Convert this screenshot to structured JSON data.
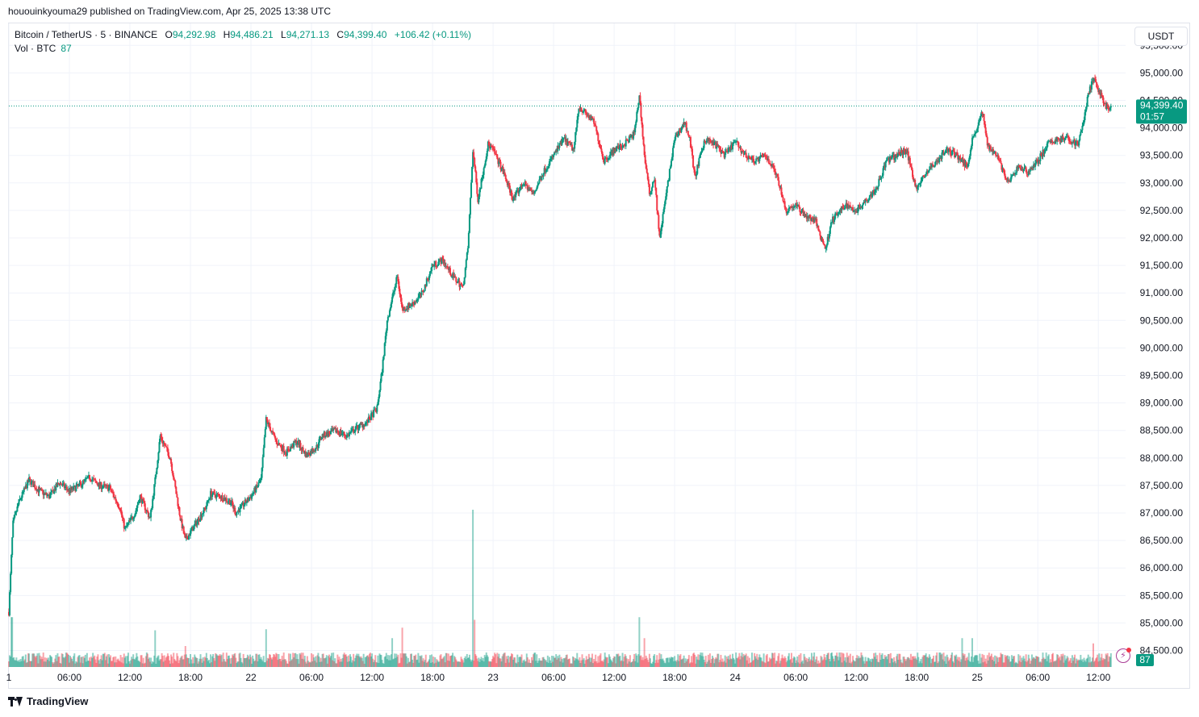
{
  "header": {
    "published": "hououinkyouma29 published on TradingView.com, Apr 25, 2025 13:38 UTC"
  },
  "legend": {
    "symbol": "Bitcoin / TetherUS · 5 · BINANCE",
    "open_label": "O",
    "open": "94,292.98",
    "high_label": "H",
    "high": "94,486.21",
    "low_label": "L",
    "low": "94,271.13",
    "close_label": "C",
    "close": "94,399.40",
    "change": "+106.42 (+0.11%)",
    "volume_label": "Vol · BTC",
    "volume": "87"
  },
  "price_scale": {
    "currency": "USDT",
    "last_price": "94,399.40",
    "countdown": "01:57",
    "volume_badge": "87"
  },
  "colors": {
    "up": "#089981",
    "down": "#f23645",
    "grid": "#f0f3fa",
    "last_price_line": "#089981",
    "text": "#131722"
  },
  "icons": {
    "alert": "lightning-alert-icon",
    "brand": "tradingview-logo-icon"
  },
  "brand": {
    "name": "TradingView"
  },
  "chart_data": {
    "type": "candlestick",
    "timeframe": "5",
    "y_axis": {
      "ticks": [
        84500,
        85000,
        85500,
        86000,
        86500,
        87000,
        87500,
        88000,
        88500,
        89000,
        89500,
        90000,
        90500,
        91000,
        91500,
        92000,
        92500,
        93000,
        93500,
        94000,
        94500,
        95000,
        95500
      ],
      "tick_labels": [
        "84,500.00",
        "85,000.00",
        "85,500.00",
        "86,000.00",
        "86,500.00",
        "87,000.00",
        "87,500.00",
        "88,000.00",
        "88,500.00",
        "89,000.00",
        "89,500.00",
        "90,000.00",
        "90,500.00",
        "91,000.00",
        "91,500.00",
        "92,000.00",
        "92,500.00",
        "93,000.00",
        "93,500.00",
        "94,000.00",
        "94,500.00",
        "95,000.00",
        "95,500.00"
      ],
      "range": [
        84200,
        95900
      ]
    },
    "x_axis": {
      "ticks": [
        0,
        6,
        12,
        18,
        24,
        30,
        36,
        42,
        48,
        54,
        60,
        66,
        72,
        78,
        84,
        90,
        96,
        102,
        108,
        114,
        120
      ],
      "tick_labels": [
        "1",
        "06:00",
        "12:00",
        "18:00",
        "22",
        "06:00",
        "12:00",
        "18:00",
        "23",
        "06:00",
        "12:00",
        "18:00",
        "24",
        "06:00",
        "12:00",
        "18:00",
        "25",
        "06:00",
        "12:00"
      ],
      "range_hours": [
        0,
        110.7
      ]
    },
    "price_path": [
      [
        0,
        85200
      ],
      [
        0.4,
        86800
      ],
      [
        1,
        87200
      ],
      [
        2,
        87600
      ],
      [
        3,
        87400
      ],
      [
        4,
        87300
      ],
      [
        5,
        87550
      ],
      [
        6,
        87400
      ],
      [
        7,
        87500
      ],
      [
        8,
        87650
      ],
      [
        9,
        87500
      ],
      [
        10,
        87450
      ],
      [
        11,
        87100
      ],
      [
        11.5,
        86700
      ],
      [
        12.5,
        87000
      ],
      [
        13,
        87300
      ],
      [
        14,
        86900
      ],
      [
        14.5,
        87600
      ],
      [
        15,
        88400
      ],
      [
        16,
        88000
      ],
      [
        17,
        86900
      ],
      [
        17.5,
        86500
      ],
      [
        18.5,
        86800
      ],
      [
        19.5,
        87100
      ],
      [
        20,
        87350
      ],
      [
        21,
        87300
      ],
      [
        22,
        87200
      ],
      [
        22.5,
        87000
      ],
      [
        23,
        87100
      ],
      [
        24,
        87300
      ],
      [
        25,
        87600
      ],
      [
        25.5,
        88700
      ],
      [
        26.5,
        88300
      ],
      [
        27.5,
        88100
      ],
      [
        28.5,
        88300
      ],
      [
        29.5,
        88050
      ],
      [
        30.5,
        88200
      ],
      [
        31,
        88400
      ],
      [
        32.5,
        88500
      ],
      [
        33.5,
        88400
      ],
      [
        34.5,
        88550
      ],
      [
        35.5,
        88650
      ],
      [
        36.5,
        88900
      ],
      [
        37,
        89600
      ],
      [
        37.5,
        90500
      ],
      [
        38,
        90900
      ],
      [
        38.5,
        91300
      ],
      [
        39,
        90700
      ],
      [
        40,
        90800
      ],
      [
        41,
        91000
      ],
      [
        42,
        91500
      ],
      [
        43,
        91600
      ],
      [
        44,
        91300
      ],
      [
        45,
        91100
      ],
      [
        45.5,
        91800
      ],
      [
        46,
        93600
      ],
      [
        46.5,
        92700
      ],
      [
        47,
        93200
      ],
      [
        47.5,
        93700
      ],
      [
        48,
        93600
      ],
      [
        49,
        93200
      ],
      [
        50,
        92700
      ],
      [
        51,
        93000
      ],
      [
        52,
        92800
      ],
      [
        53,
        93200
      ],
      [
        54,
        93500
      ],
      [
        55,
        93800
      ],
      [
        56,
        93600
      ],
      [
        56.5,
        94400
      ],
      [
        57,
        94300
      ],
      [
        58,
        94100
      ],
      [
        59,
        93400
      ],
      [
        60,
        93600
      ],
      [
        61,
        93700
      ],
      [
        62,
        93900
      ],
      [
        62.5,
        94600
      ],
      [
        63,
        93500
      ],
      [
        63.5,
        92800
      ],
      [
        64,
        93100
      ],
      [
        64.5,
        92000
      ],
      [
        65,
        92600
      ],
      [
        65.5,
        93200
      ],
      [
        66,
        93800
      ],
      [
        67,
        94100
      ],
      [
        67.5,
        93800
      ],
      [
        68,
        93100
      ],
      [
        69,
        93800
      ],
      [
        70,
        93700
      ],
      [
        71,
        93500
      ],
      [
        72,
        93750
      ],
      [
        73,
        93500
      ],
      [
        74,
        93400
      ],
      [
        75,
        93500
      ],
      [
        76,
        93200
      ],
      [
        76.5,
        92900
      ],
      [
        77,
        92500
      ],
      [
        78,
        92600
      ],
      [
        79,
        92400
      ],
      [
        80,
        92300
      ],
      [
        80.5,
        92000
      ],
      [
        81,
        91800
      ],
      [
        81.5,
        92300
      ],
      [
        82,
        92400
      ],
      [
        83,
        92600
      ],
      [
        84,
        92500
      ],
      [
        85,
        92700
      ],
      [
        86,
        92900
      ],
      [
        87,
        93400
      ],
      [
        88,
        93500
      ],
      [
        89,
        93600
      ],
      [
        89.5,
        93200
      ],
      [
        90,
        92900
      ],
      [
        91,
        93200
      ],
      [
        92,
        93400
      ],
      [
        93,
        93600
      ],
      [
        94,
        93500
      ],
      [
        95,
        93300
      ],
      [
        95.5,
        93800
      ],
      [
        96,
        94000
      ],
      [
        96.5,
        94300
      ],
      [
        97,
        93700
      ],
      [
        98,
        93500
      ],
      [
        99,
        93000
      ],
      [
        99.5,
        93100
      ],
      [
        100,
        93300
      ],
      [
        101,
        93200
      ],
      [
        102,
        93400
      ],
      [
        103,
        93700
      ],
      [
        104,
        93800
      ],
      [
        105,
        93800
      ],
      [
        106,
        93700
      ],
      [
        106.5,
        94100
      ],
      [
        107,
        94600
      ],
      [
        107.5,
        94900
      ],
      [
        108,
        94700
      ],
      [
        108.5,
        94500
      ],
      [
        109,
        94300
      ],
      [
        109.3,
        94399.4
      ]
    ],
    "last_price": 94399.4,
    "volume": {
      "last": 87,
      "spikes": [
        [
          0.3,
          95
        ],
        [
          14.5,
          70
        ],
        [
          17.5,
          40
        ],
        [
          25.5,
          72
        ],
        [
          38,
          55
        ],
        [
          39,
          75
        ],
        [
          46,
          300
        ],
        [
          46.2,
          90
        ],
        [
          62.5,
          95
        ],
        [
          63,
          55
        ],
        [
          94.5,
          55
        ],
        [
          95.5,
          55
        ],
        [
          107.5,
          45
        ]
      ]
    }
  }
}
